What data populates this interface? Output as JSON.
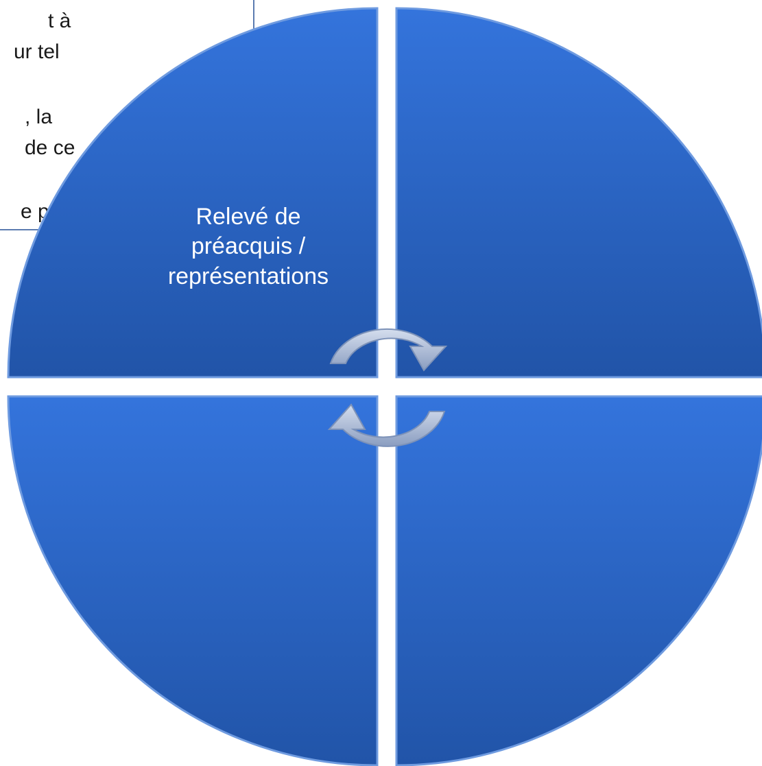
{
  "textbox": {
    "lines": [
      "t à",
      "ur tel",
      ", la",
      "de ce",
      "…",
      "e pa"
    ]
  },
  "nodes": [
    {
      "label": [
        "Relevé de",
        "préacquis /",
        "représentations"
      ]
    }
  ]
}
